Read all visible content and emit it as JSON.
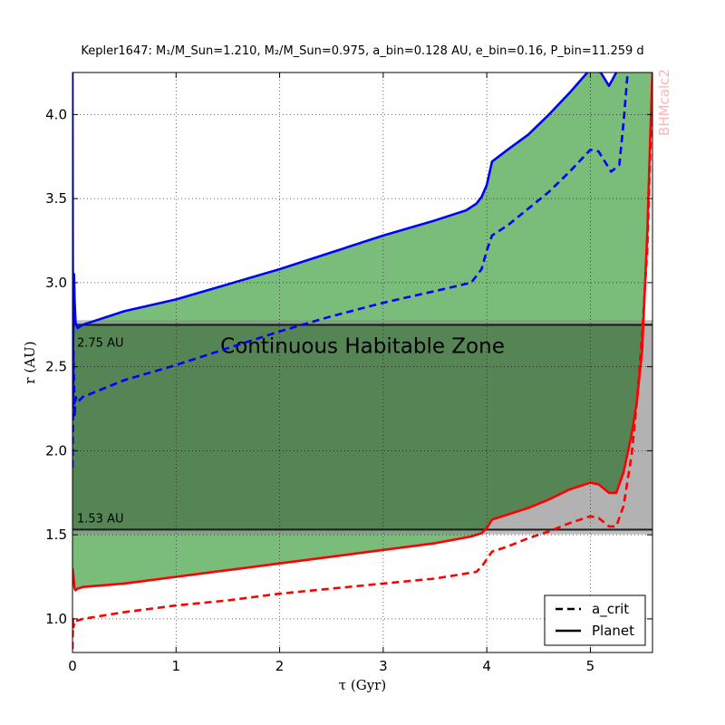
{
  "chart_data": {
    "type": "line",
    "title": "Kepler1647: M₁/M_Sun=1.210, M₂/M_Sun=0.975, a_bin=0.128 AU, e_bin=0.16, P_bin=11.259 d",
    "xlabel": "τ (Gyr)",
    "ylabel": "r (AU)",
    "xlim": [
      0,
      5.6
    ],
    "ylim": [
      0.8,
      4.25
    ],
    "xticks": [
      0,
      1,
      2,
      3,
      4,
      5
    ],
    "yticks": [
      1.0,
      1.5,
      2.0,
      2.5,
      3.0,
      3.5,
      4.0
    ],
    "xtick_labels": [
      "0",
      "1",
      "2",
      "3",
      "4",
      "5"
    ],
    "ytick_labels": [
      "1.0",
      "1.5",
      "2.0",
      "2.5",
      "3.0",
      "3.5",
      "4.0"
    ],
    "grid": true,
    "legend_position": "lower-right",
    "legend": [
      {
        "label": "a_crit",
        "style": "dashed"
      },
      {
        "label": "Planet",
        "style": "solid"
      }
    ],
    "watermark": "BHMcalc2",
    "chz": {
      "label": "Continuous Habitable Zone",
      "inner": 1.53,
      "outer": 2.75,
      "inner_label": "1.53 AU",
      "outer_label": "2.75 AU"
    },
    "series": [
      {
        "color": "#0000ff",
        "style": "solid",
        "x": [
          0,
          0.003,
          0.006,
          0.01,
          0.015,
          0.02,
          0.03,
          0.05,
          0.1,
          0.5,
          1,
          1.5,
          2,
          2.5,
          3,
          3.5,
          3.8,
          3.9,
          3.95,
          4.0,
          4.05,
          4.2,
          4.4,
          4.6,
          4.8,
          5.0,
          5.1,
          5.18,
          5.25
        ],
        "y": [
          4.25,
          3.2,
          2.6,
          2.8,
          3.05,
          2.9,
          2.76,
          2.73,
          2.75,
          2.83,
          2.9,
          2.99,
          3.08,
          3.18,
          3.28,
          3.37,
          3.43,
          3.47,
          3.51,
          3.58,
          3.72,
          3.79,
          3.88,
          4.0,
          4.13,
          4.27,
          4.25,
          4.17,
          4.25
        ]
      },
      {
        "color": "#0000ff",
        "style": "dashed",
        "x": [
          0,
          0.01,
          0.02,
          0.03,
          0.05,
          0.1,
          0.5,
          1,
          1.5,
          2,
          2.5,
          3,
          3.5,
          3.85,
          3.95,
          4.0,
          4.05,
          4.2,
          4.4,
          4.6,
          4.8,
          5.0,
          5.08,
          5.2,
          5.28,
          5.32,
          5.36
        ],
        "y": [
          1.9,
          2.6,
          2.2,
          2.32,
          2.29,
          2.32,
          2.42,
          2.51,
          2.61,
          2.71,
          2.8,
          2.88,
          2.95,
          3.0,
          3.08,
          3.19,
          3.28,
          3.34,
          3.44,
          3.54,
          3.66,
          3.79,
          3.78,
          3.66,
          3.7,
          3.95,
          4.25
        ]
      },
      {
        "color": "#ff0000",
        "style": "solid",
        "x": [
          0,
          0.01,
          0.02,
          0.03,
          0.05,
          0.1,
          0.5,
          1,
          1.5,
          2,
          2.5,
          3,
          3.5,
          3.85,
          3.95,
          4.0,
          4.05,
          4.2,
          4.4,
          4.6,
          4.8,
          5.0,
          5.08,
          5.18,
          5.25,
          5.32,
          5.4,
          5.45,
          5.5,
          5.55,
          5.58,
          5.6
        ],
        "y": [
          1.3,
          1.25,
          1.18,
          1.17,
          1.18,
          1.19,
          1.21,
          1.25,
          1.29,
          1.33,
          1.37,
          1.41,
          1.45,
          1.49,
          1.51,
          1.54,
          1.59,
          1.62,
          1.66,
          1.71,
          1.77,
          1.81,
          1.8,
          1.75,
          1.75,
          1.87,
          2.1,
          2.3,
          2.6,
          3.3,
          3.9,
          4.25
        ]
      },
      {
        "color": "#ff0000",
        "style": "dashed",
        "x": [
          0,
          0.005,
          0.01,
          0.02,
          0.03,
          0.05,
          0.1,
          0.5,
          1,
          1.5,
          2,
          2.5,
          3,
          3.5,
          3.9,
          3.95,
          4.05,
          4.2,
          4.4,
          4.6,
          4.8,
          5.0,
          5.08,
          5.18,
          5.25,
          5.32,
          5.4,
          5.45,
          5.5,
          5.55,
          5.58,
          5.6
        ],
        "y": [
          0.82,
          1.0,
          0.95,
          0.99,
          0.99,
          0.99,
          1.0,
          1.04,
          1.08,
          1.11,
          1.15,
          1.18,
          1.21,
          1.24,
          1.28,
          1.31,
          1.4,
          1.43,
          1.48,
          1.52,
          1.57,
          1.61,
          1.6,
          1.55,
          1.55,
          1.67,
          1.98,
          2.3,
          2.7,
          3.2,
          3.8,
          4.25
        ]
      }
    ]
  }
}
